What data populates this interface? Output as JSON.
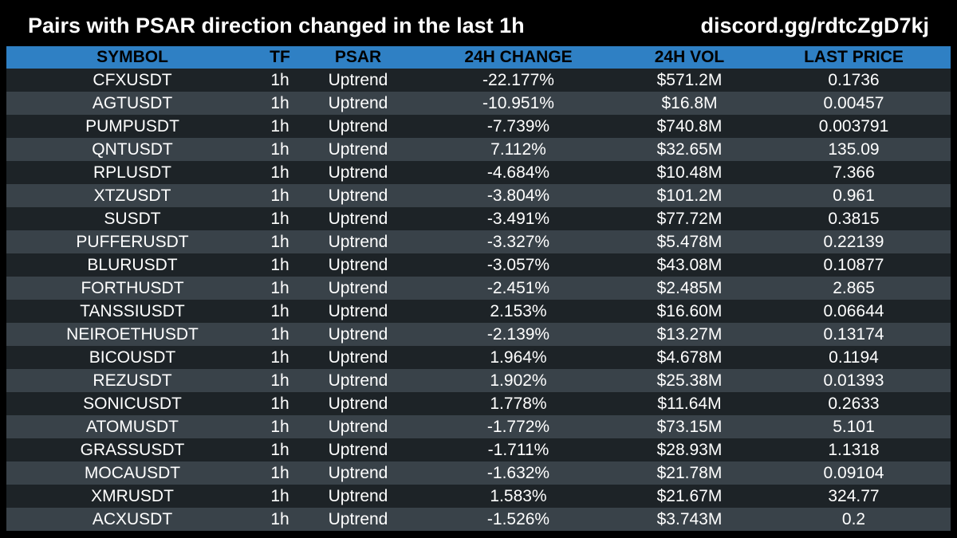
{
  "header": {
    "title": "Pairs with PSAR direction changed in the last 1h",
    "discord": "discord.gg/rdtcZgD7kj"
  },
  "colors": {
    "header_bar": "#2f80c4",
    "row_dark": "#1d2327",
    "row_light": "#394249",
    "background": "#000000"
  },
  "table": {
    "columns": [
      "SYMBOL",
      "TF",
      "PSAR",
      "24H CHANGE",
      "24H VOL",
      "LAST PRICE"
    ],
    "rows": [
      [
        "CFXUSDT",
        "1h",
        "Uptrend",
        "-22.177%",
        "$571.2M",
        "0.1736"
      ],
      [
        "AGTUSDT",
        "1h",
        "Uptrend",
        "-10.951%",
        "$16.8M",
        "0.00457"
      ],
      [
        "PUMPUSDT",
        "1h",
        "Uptrend",
        "-7.739%",
        "$740.8M",
        "0.003791"
      ],
      [
        "QNTUSDT",
        "1h",
        "Uptrend",
        "7.112%",
        "$32.65M",
        "135.09"
      ],
      [
        "RPLUSDT",
        "1h",
        "Uptrend",
        "-4.684%",
        "$10.48M",
        "7.366"
      ],
      [
        "XTZUSDT",
        "1h",
        "Uptrend",
        "-3.804%",
        "$101.2M",
        "0.961"
      ],
      [
        "SUSDT",
        "1h",
        "Uptrend",
        "-3.491%",
        "$77.72M",
        "0.3815"
      ],
      [
        "PUFFERUSDT",
        "1h",
        "Uptrend",
        "-3.327%",
        "$5.478M",
        "0.22139"
      ],
      [
        "BLURUSDT",
        "1h",
        "Uptrend",
        "-3.057%",
        "$43.08M",
        "0.10877"
      ],
      [
        "FORTHUSDT",
        "1h",
        "Uptrend",
        "-2.451%",
        "$2.485M",
        "2.865"
      ],
      [
        "TANSSIUSDT",
        "1h",
        "Uptrend",
        "2.153%",
        "$16.60M",
        "0.06644"
      ],
      [
        "NEIROETHUSDT",
        "1h",
        "Uptrend",
        "-2.139%",
        "$13.27M",
        "0.13174"
      ],
      [
        "BICOUSDT",
        "1h",
        "Uptrend",
        "1.964%",
        "$4.678M",
        "0.1194"
      ],
      [
        "REZUSDT",
        "1h",
        "Uptrend",
        "1.902%",
        "$25.38M",
        "0.01393"
      ],
      [
        "SONICUSDT",
        "1h",
        "Uptrend",
        "1.778%",
        "$11.64M",
        "0.2633"
      ],
      [
        "ATOMUSDT",
        "1h",
        "Uptrend",
        "-1.772%",
        "$73.15M",
        "5.101"
      ],
      [
        "GRASSUSDT",
        "1h",
        "Uptrend",
        "-1.711%",
        "$28.93M",
        "1.1318"
      ],
      [
        "MOCAUSDT",
        "1h",
        "Uptrend",
        "-1.632%",
        "$21.78M",
        "0.09104"
      ],
      [
        "XMRUSDT",
        "1h",
        "Uptrend",
        "1.583%",
        "$21.67M",
        "324.77"
      ],
      [
        "ACXUSDT",
        "1h",
        "Uptrend",
        "-1.526%",
        "$3.743M",
        "0.2"
      ]
    ]
  }
}
